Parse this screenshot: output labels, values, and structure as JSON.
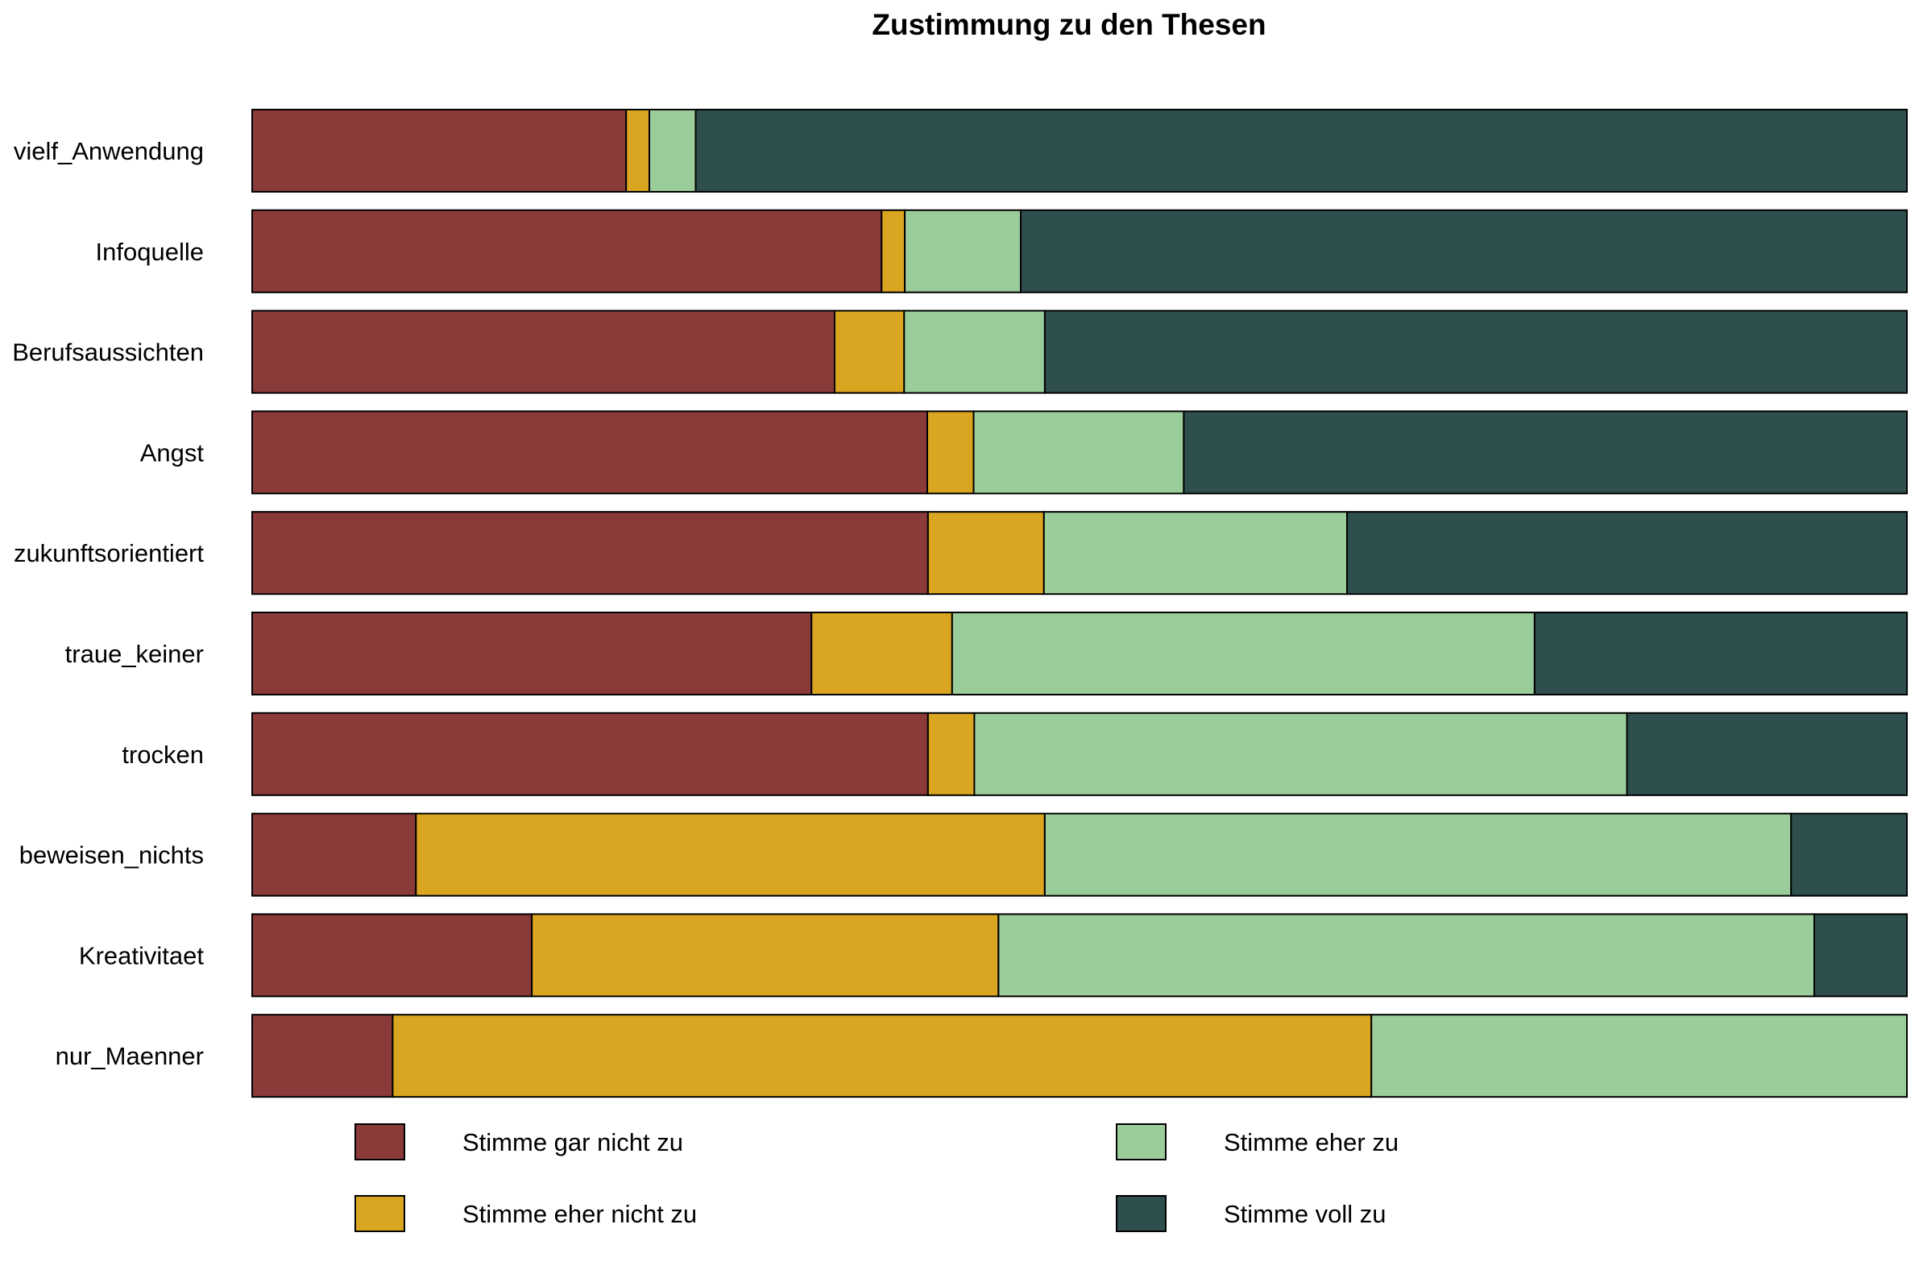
{
  "chart_data": {
    "type": "bar",
    "orientation": "horizontal",
    "stacked": "percent",
    "title": "Zustimmung zu den Thesen",
    "xlabel": "",
    "ylabel": "",
    "grid": false,
    "legend_position": "bottom",
    "categories": [
      "vielf_Anwendung",
      "Infoquelle",
      "Berufsaussichten",
      "Angst",
      "zukunftsorientiert",
      "traue_keiner",
      "trocken",
      "beweisen_nichts",
      "Kreativitaet",
      "nur_Maenner"
    ],
    "series": [
      {
        "name": "Stimme gar nicht zu",
        "color": "#8B3A3A",
        "values": [
          22.6,
          38.0,
          35.2,
          40.8,
          40.8,
          33.8,
          40.8,
          9.9,
          16.9,
          8.5
        ]
      },
      {
        "name": "Stimme eher nicht zu",
        "color": "#DAA520",
        "values": [
          1.4,
          1.4,
          4.2,
          2.8,
          7.0,
          8.5,
          2.8,
          38.0,
          28.2,
          59.2
        ]
      },
      {
        "name": "Stimme eher zu",
        "color": "#9BCD9B",
        "values": [
          2.8,
          7.0,
          8.5,
          12.7,
          18.3,
          35.2,
          39.4,
          45.1,
          49.3,
          32.4
        ]
      },
      {
        "name": "Stimme voll zu",
        "color": "#2F4F4F",
        "values": [
          73.2,
          53.5,
          52.1,
          43.7,
          33.8,
          22.5,
          16.9,
          7.0,
          5.6,
          0.0
        ]
      }
    ]
  }
}
